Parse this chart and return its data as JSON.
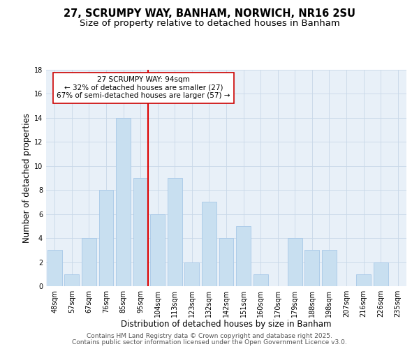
{
  "title": "27, SCRUMPY WAY, BANHAM, NORWICH, NR16 2SU",
  "subtitle": "Size of property relative to detached houses in Banham",
  "xlabel": "Distribution of detached houses by size in Banham",
  "ylabel": "Number of detached properties",
  "bar_color": "#c8dff0",
  "bar_edge_color": "#a8c8e8",
  "categories": [
    "48sqm",
    "57sqm",
    "67sqm",
    "76sqm",
    "85sqm",
    "95sqm",
    "104sqm",
    "113sqm",
    "123sqm",
    "132sqm",
    "142sqm",
    "151sqm",
    "160sqm",
    "170sqm",
    "179sqm",
    "188sqm",
    "198sqm",
    "207sqm",
    "216sqm",
    "226sqm",
    "235sqm"
  ],
  "values": [
    3,
    1,
    4,
    8,
    14,
    9,
    6,
    9,
    2,
    7,
    4,
    5,
    1,
    0,
    4,
    3,
    3,
    0,
    1,
    2,
    0
  ],
  "highlight_index": 5,
  "highlight_color": "#dd0000",
  "annotation_title": "27 SCRUMPY WAY: 94sqm",
  "annotation_line1": "← 32% of detached houses are smaller (27)",
  "annotation_line2": "67% of semi-detached houses are larger (57) →",
  "annotation_box_facecolor": "#ffffff",
  "annotation_box_edgecolor": "#cc0000",
  "ylim": [
    0,
    18
  ],
  "yticks": [
    0,
    2,
    4,
    6,
    8,
    10,
    12,
    14,
    16,
    18
  ],
  "footer1": "Contains HM Land Registry data © Crown copyright and database right 2025.",
  "footer2": "Contains public sector information licensed under the Open Government Licence v3.0.",
  "background_color": "#ffffff",
  "plot_bg_color": "#e8f0f8",
  "grid_color": "#c8d8e8",
  "title_fontsize": 10.5,
  "subtitle_fontsize": 9.5,
  "axis_label_fontsize": 8.5,
  "tick_fontsize": 7,
  "annotation_fontsize": 7.5,
  "footer_fontsize": 6.5
}
